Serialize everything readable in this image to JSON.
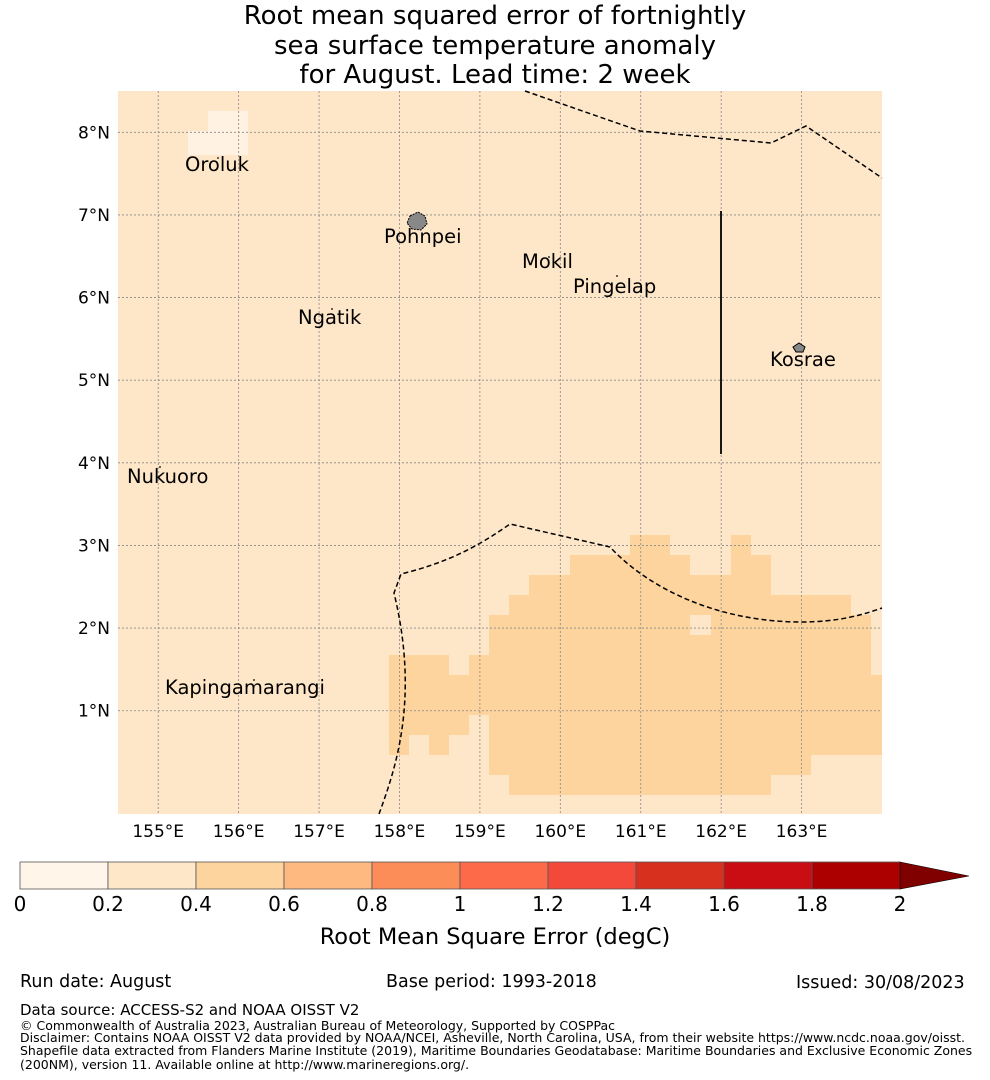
{
  "title_lines": [
    "Root mean squared error of fortnightly",
    "sea surface temperature anomaly",
    "for August. Lead time: 2 week"
  ],
  "map": {
    "lon_range": [
      154.5,
      164.0
    ],
    "lat_range": [
      -0.25,
      8.5
    ],
    "lon_ticks": [
      155,
      156,
      157,
      158,
      159,
      160,
      161,
      162,
      163
    ],
    "lon_tick_labels": [
      "155°E",
      "156°E",
      "157°E",
      "158°E",
      "159°E",
      "160°E",
      "161°E",
      "162°E",
      "163°E"
    ],
    "lat_ticks": [
      1,
      2,
      3,
      4,
      5,
      6,
      7,
      8
    ],
    "lat_tick_labels": [
      "1°N",
      "2°N",
      "3°N",
      "4°N",
      "5°N",
      "6°N",
      "7°N",
      "8°N"
    ],
    "background_class_color": "#fee6c9",
    "islands": [
      {
        "name": "Oroluk",
        "lon": 155.6,
        "lat": 7.6
      },
      {
        "name": "Pohnpei",
        "lon": 158.2,
        "lat": 6.9
      },
      {
        "name": "Mokil",
        "lon": 159.8,
        "lat": 6.4
      },
      {
        "name": "Pingelap",
        "lon": 160.7,
        "lat": 6.2
      },
      {
        "name": "Ngatik",
        "lon": 157.1,
        "lat": 5.8
      },
      {
        "name": "Kosrae",
        "lon": 163.0,
        "lat": 5.3
      },
      {
        "name": "Nukuoro",
        "lon": 155.0,
        "lat": 3.85
      },
      {
        "name": "Kapingamarangi",
        "lon": 154.8,
        "lat": 1.08
      }
    ]
  },
  "colorbar": {
    "label": "Root Mean Square Error (degC)",
    "ticks": [
      "0",
      "0.2",
      "0.4",
      "0.6",
      "0.8",
      "1",
      "1.2",
      "1.4",
      "1.6",
      "1.8",
      "2"
    ],
    "colors": [
      "#fff5e8",
      "#fee6c9",
      "#fdd49e",
      "#fdb97f",
      "#fc8d59",
      "#fc6a4a",
      "#f3493b",
      "#d8301f",
      "#c90d12",
      "#ac0000"
    ],
    "extend_color": "#800000"
  },
  "footer": {
    "run_date": "Run date: August",
    "base_period": "Base period: 1993-2018",
    "issued": "Issued: 30/08/2023",
    "data_source": "Data source: ACCESS-S2 and NOAA OISST V2",
    "copyright": "© Commonwealth of Australia 2023, Australian Bureau of Meteorology, Supported by COSPPac",
    "disclaimer_1": "Disclaimer: Contains NOAA OISST V2 data provided by NOAA/NCEI, Asheville, North Carolina, USA, from their website https://www.ncdc.noaa.gov/oisst.",
    "disclaimer_2": "Shapefile data extracted from Flanders Marine Institute (2019), Maritime Boundaries Geodatabase: Maritime Boundaries and Exclusive Economic Zones",
    "disclaimer_3": "(200NM), version 11. Available online at http://www.marineregions.org/."
  }
}
